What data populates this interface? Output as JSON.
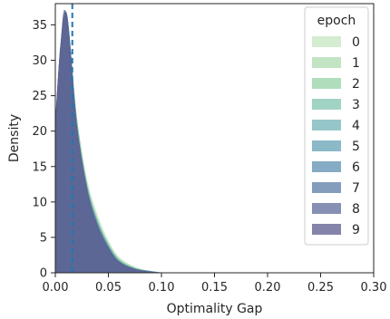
{
  "chart_data": {
    "type": "area",
    "title": "",
    "xlabel": "Optimality Gap",
    "ylabel": "Density",
    "xlim": [
      0.0,
      0.3
    ],
    "ylim": [
      0,
      38
    ],
    "xticks": [
      0.0,
      0.05,
      0.1,
      0.15,
      0.2,
      0.25,
      0.3
    ],
    "xtick_labels": [
      "0.00",
      "0.05",
      "0.10",
      "0.15",
      "0.20",
      "0.25",
      "0.30"
    ],
    "yticks": [
      0,
      5,
      10,
      15,
      20,
      25,
      30,
      35
    ],
    "ytick_labels": [
      "0",
      "5",
      "10",
      "15",
      "20",
      "25",
      "30",
      "35"
    ],
    "grid": false,
    "legend": {
      "title": "epoch",
      "placement": "top-right"
    },
    "reference_line": {
      "x": 0.016,
      "style": "dashed",
      "color": "#1f77b4"
    },
    "series": [
      {
        "name": "0",
        "color": "#c6e6bf",
        "peak_x": 0.011,
        "peak_y": 35.0,
        "x": [
          0.0,
          0.005,
          0.011,
          0.02,
          0.03,
          0.04,
          0.05,
          0.06,
          0.075,
          0.09,
          0.1
        ],
        "y": [
          18,
          30,
          35.0,
          22,
          13,
          8,
          4.5,
          2.2,
          0.8,
          0.2,
          0
        ]
      },
      {
        "name": "1",
        "color": "#addbae",
        "peak_x": 0.011,
        "peak_y": 35.3,
        "x": [
          0.0,
          0.005,
          0.011,
          0.02,
          0.03,
          0.04,
          0.05,
          0.06,
          0.075,
          0.09,
          0.1
        ],
        "y": [
          18,
          30,
          35.3,
          22,
          12.5,
          7.5,
          4.2,
          2.0,
          0.7,
          0.2,
          0
        ]
      },
      {
        "name": "2",
        "color": "#96d1a6",
        "peak_x": 0.011,
        "peak_y": 35.5,
        "x": [
          0.0,
          0.005,
          0.011,
          0.02,
          0.03,
          0.04,
          0.05,
          0.06,
          0.075,
          0.09,
          0.1
        ],
        "y": [
          19,
          30,
          35.5,
          22,
          12.5,
          7.5,
          4.0,
          1.9,
          0.7,
          0.2,
          0
        ]
      },
      {
        "name": "3",
        "color": "#82c4b1",
        "peak_x": 0.011,
        "peak_y": 35.6,
        "x": [
          0.0,
          0.005,
          0.011,
          0.02,
          0.03,
          0.04,
          0.05,
          0.06,
          0.075,
          0.09,
          0.1
        ],
        "y": [
          19,
          31,
          35.6,
          22,
          12,
          7,
          4.0,
          1.8,
          0.6,
          0.2,
          0
        ]
      },
      {
        "name": "4",
        "color": "#72b3b7",
        "peak_x": 0.011,
        "peak_y": 35.8,
        "x": [
          0.0,
          0.005,
          0.011,
          0.02,
          0.03,
          0.04,
          0.05,
          0.06,
          0.075,
          0.09,
          0.1
        ],
        "y": [
          19,
          31,
          35.8,
          21,
          12,
          7,
          3.8,
          1.7,
          0.6,
          0.2,
          0
        ]
      },
      {
        "name": "5",
        "color": "#66a1b6",
        "peak_x": 0.011,
        "peak_y": 36.0,
        "x": [
          0.0,
          0.005,
          0.011,
          0.02,
          0.03,
          0.04,
          0.05,
          0.06,
          0.075,
          0.09,
          0.1
        ],
        "y": [
          20,
          31,
          36.0,
          21,
          12,
          7,
          3.8,
          1.7,
          0.5,
          0.2,
          0
        ]
      },
      {
        "name": "6",
        "color": "#5e8fb1",
        "peak_x": 0.011,
        "peak_y": 36.1,
        "x": [
          0.0,
          0.005,
          0.011,
          0.02,
          0.03,
          0.04,
          0.05,
          0.06,
          0.075,
          0.09,
          0.1
        ],
        "y": [
          20,
          32,
          36.1,
          21,
          12,
          7,
          3.6,
          1.6,
          0.5,
          0.2,
          0
        ]
      },
      {
        "name": "7",
        "color": "#5b7ca6",
        "peak_x": 0.011,
        "peak_y": 36.3,
        "x": [
          0.0,
          0.005,
          0.011,
          0.02,
          0.03,
          0.04,
          0.05,
          0.06,
          0.075,
          0.09,
          0.1
        ],
        "y": [
          20,
          32,
          36.3,
          21,
          11.5,
          6.5,
          3.5,
          1.5,
          0.5,
          0.1,
          0
        ]
      },
      {
        "name": "8",
        "color": "#5d6b9a",
        "peak_x": 0.011,
        "peak_y": 36.4,
        "x": [
          0.0,
          0.005,
          0.011,
          0.02,
          0.03,
          0.04,
          0.05,
          0.06,
          0.075,
          0.09,
          0.1
        ],
        "y": [
          21,
          32,
          36.4,
          21,
          11.5,
          6.5,
          3.5,
          1.5,
          0.5,
          0.1,
          0
        ]
      },
      {
        "name": "9",
        "color": "#5b5a8c",
        "peak_x": 0.01,
        "peak_y": 36.6,
        "x": [
          0.0,
          0.005,
          0.01,
          0.02,
          0.03,
          0.04,
          0.05,
          0.06,
          0.075,
          0.09,
          0.1
        ],
        "y": [
          21,
          32,
          36.6,
          21,
          11.5,
          6.5,
          3.4,
          1.5,
          0.5,
          0.1,
          0
        ]
      }
    ]
  }
}
